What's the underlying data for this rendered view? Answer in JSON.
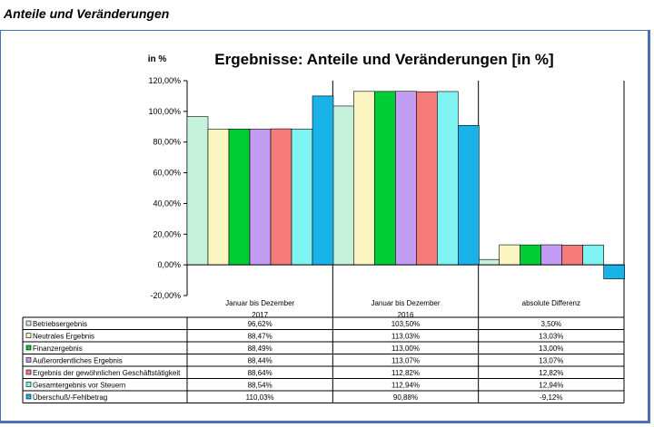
{
  "page": {
    "heading": "Anteile und Veränderungen"
  },
  "colors": {
    "axis": "#000000",
    "series": [
      "#c6f2dc",
      "#fbf5c2",
      "#00cc33",
      "#c29cf2",
      "#f57a7a",
      "#7ff2f2",
      "#19b3ea"
    ]
  },
  "chart_data": {
    "type": "bar",
    "title": "Ergebnisse: Anteile und Veränderungen [in %]",
    "ylabel": "in %",
    "ylim": [
      -20,
      120
    ],
    "ytick_step": 20,
    "ytick_labels": [
      "-20,00%",
      "0,00%",
      "20,00%",
      "40,00%",
      "60,00%",
      "80,00%",
      "100,00%",
      "120,00%"
    ],
    "categories": [
      {
        "line1": "Januar bis Dezember",
        "line2": "2017"
      },
      {
        "line1": "Januar bis Dezember",
        "line2": "2016"
      },
      {
        "line1": "absolute Differenz",
        "line2": ""
      }
    ],
    "series": [
      {
        "name": "Betriebsergebnis",
        "values": [
          96.62,
          103.5,
          3.5
        ],
        "labels": [
          "96,62%",
          "103,50%",
          "3,50%"
        ]
      },
      {
        "name": "Neutrales Ergebnis",
        "values": [
          88.47,
          113.03,
          13.03
        ],
        "labels": [
          "88,47%",
          "113,03%",
          "13,03%"
        ]
      },
      {
        "name": "Finanzergebnis",
        "values": [
          88.49,
          113.0,
          13.0
        ],
        "labels": [
          "88,49%",
          "113,00%",
          "13,00%"
        ]
      },
      {
        "name": "Außerordentliches Ergebnis",
        "values": [
          88.44,
          113.07,
          13.07
        ],
        "labels": [
          "88,44%",
          "113,07%",
          "13,07%"
        ]
      },
      {
        "name": "Ergebnis der gewöhnlichen Geschäftstätigkeit",
        "values": [
          88.64,
          112.82,
          12.82
        ],
        "labels": [
          "88,64%",
          "112,82%",
          "12,82%"
        ]
      },
      {
        "name": "Gesamtergebnis vor Steuern",
        "values": [
          88.54,
          112.94,
          12.94
        ],
        "labels": [
          "88,54%",
          "112,94%",
          "12,94%"
        ]
      },
      {
        "name": "Überschuß/-Fehlbetrag",
        "values": [
          110.03,
          90.88,
          -9.12
        ],
        "labels": [
          "110,03%",
          "90,88%",
          "-9,12%"
        ]
      }
    ]
  }
}
